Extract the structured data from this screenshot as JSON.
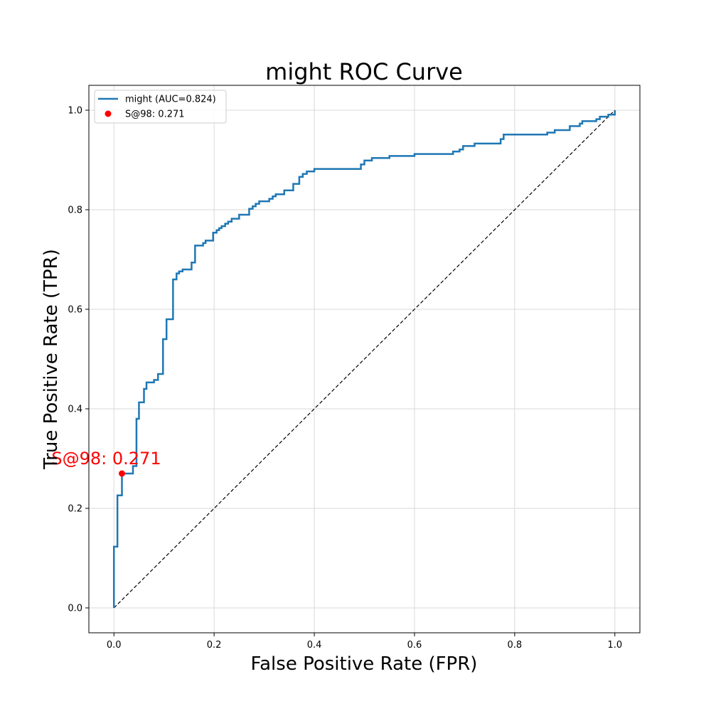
{
  "chart_data": {
    "type": "line",
    "title": "might ROC Curve",
    "xlabel": "False Positive Rate (FPR)",
    "ylabel": "True Positive Rate (TPR)",
    "xlim": [
      -0.05,
      1.05
    ],
    "ylim": [
      -0.05,
      1.05
    ],
    "xticks": [
      0.0,
      0.2,
      0.4,
      0.6,
      0.8,
      1.0
    ],
    "xtick_labels": [
      "0.0",
      "0.2",
      "0.4",
      "0.6",
      "0.8",
      "1.0"
    ],
    "yticks": [
      0.0,
      0.2,
      0.4,
      0.6,
      0.8,
      1.0
    ],
    "ytick_labels": [
      "0.0",
      "0.2",
      "0.4",
      "0.6",
      "0.8",
      "1.0"
    ],
    "grid": true,
    "legend_position": "top-left",
    "series": [
      {
        "name": "might (AUC=0.824)",
        "color": "#1f77b4",
        "points": [
          [
            0.0,
            0.0
          ],
          [
            0.0,
            0.123
          ],
          [
            0.007,
            0.123
          ],
          [
            0.007,
            0.226
          ],
          [
            0.016,
            0.226
          ],
          [
            0.016,
            0.27
          ],
          [
            0.038,
            0.27
          ],
          [
            0.038,
            0.285
          ],
          [
            0.045,
            0.285
          ],
          [
            0.045,
            0.38
          ],
          [
            0.05,
            0.38
          ],
          [
            0.05,
            0.413
          ],
          [
            0.06,
            0.413
          ],
          [
            0.06,
            0.44
          ],
          [
            0.065,
            0.44
          ],
          [
            0.065,
            0.453
          ],
          [
            0.08,
            0.453
          ],
          [
            0.08,
            0.458
          ],
          [
            0.088,
            0.458
          ],
          [
            0.088,
            0.47
          ],
          [
            0.098,
            0.47
          ],
          [
            0.098,
            0.54
          ],
          [
            0.105,
            0.54
          ],
          [
            0.105,
            0.58
          ],
          [
            0.118,
            0.58
          ],
          [
            0.118,
            0.66
          ],
          [
            0.125,
            0.66
          ],
          [
            0.125,
            0.672
          ],
          [
            0.13,
            0.672
          ],
          [
            0.13,
            0.676
          ],
          [
            0.137,
            0.676
          ],
          [
            0.137,
            0.68
          ],
          [
            0.155,
            0.68
          ],
          [
            0.155,
            0.694
          ],
          [
            0.162,
            0.694
          ],
          [
            0.162,
            0.728
          ],
          [
            0.178,
            0.728
          ],
          [
            0.178,
            0.733
          ],
          [
            0.183,
            0.733
          ],
          [
            0.183,
            0.738
          ],
          [
            0.198,
            0.738
          ],
          [
            0.198,
            0.754
          ],
          [
            0.205,
            0.754
          ],
          [
            0.205,
            0.759
          ],
          [
            0.21,
            0.759
          ],
          [
            0.21,
            0.763
          ],
          [
            0.215,
            0.763
          ],
          [
            0.215,
            0.767
          ],
          [
            0.222,
            0.767
          ],
          [
            0.222,
            0.772
          ],
          [
            0.228,
            0.772
          ],
          [
            0.228,
            0.776
          ],
          [
            0.235,
            0.776
          ],
          [
            0.235,
            0.782
          ],
          [
            0.25,
            0.782
          ],
          [
            0.25,
            0.79
          ],
          [
            0.27,
            0.79
          ],
          [
            0.27,
            0.802
          ],
          [
            0.277,
            0.802
          ],
          [
            0.277,
            0.807
          ],
          [
            0.283,
            0.807
          ],
          [
            0.283,
            0.812
          ],
          [
            0.29,
            0.812
          ],
          [
            0.29,
            0.817
          ],
          [
            0.31,
            0.817
          ],
          [
            0.31,
            0.822
          ],
          [
            0.317,
            0.822
          ],
          [
            0.317,
            0.827
          ],
          [
            0.323,
            0.827
          ],
          [
            0.323,
            0.831
          ],
          [
            0.34,
            0.831
          ],
          [
            0.34,
            0.839
          ],
          [
            0.358,
            0.839
          ],
          [
            0.358,
            0.852
          ],
          [
            0.37,
            0.852
          ],
          [
            0.37,
            0.866
          ],
          [
            0.377,
            0.866
          ],
          [
            0.377,
            0.872
          ],
          [
            0.385,
            0.872
          ],
          [
            0.385,
            0.877
          ],
          [
            0.4,
            0.877
          ],
          [
            0.4,
            0.882
          ],
          [
            0.493,
            0.882
          ],
          [
            0.493,
            0.891
          ],
          [
            0.5,
            0.891
          ],
          [
            0.5,
            0.899
          ],
          [
            0.515,
            0.899
          ],
          [
            0.515,
            0.904
          ],
          [
            0.55,
            0.904
          ],
          [
            0.55,
            0.908
          ],
          [
            0.6,
            0.908
          ],
          [
            0.6,
            0.912
          ],
          [
            0.677,
            0.912
          ],
          [
            0.677,
            0.917
          ],
          [
            0.69,
            0.917
          ],
          [
            0.69,
            0.921
          ],
          [
            0.697,
            0.921
          ],
          [
            0.697,
            0.928
          ],
          [
            0.72,
            0.928
          ],
          [
            0.72,
            0.933
          ],
          [
            0.772,
            0.933
          ],
          [
            0.772,
            0.942
          ],
          [
            0.778,
            0.942
          ],
          [
            0.778,
            0.951
          ],
          [
            0.865,
            0.951
          ],
          [
            0.865,
            0.955
          ],
          [
            0.88,
            0.955
          ],
          [
            0.88,
            0.96
          ],
          [
            0.91,
            0.96
          ],
          [
            0.91,
            0.968
          ],
          [
            0.93,
            0.968
          ],
          [
            0.93,
            0.973
          ],
          [
            0.935,
            0.973
          ],
          [
            0.935,
            0.978
          ],
          [
            0.963,
            0.978
          ],
          [
            0.963,
            0.982
          ],
          [
            0.97,
            0.982
          ],
          [
            0.97,
            0.987
          ],
          [
            0.987,
            0.987
          ],
          [
            0.987,
            0.991
          ],
          [
            1.0,
            0.991
          ],
          [
            1.0,
            1.0
          ]
        ]
      }
    ],
    "diagonal": {
      "points": [
        [
          0.0,
          0.0
        ],
        [
          1.0,
          1.0
        ]
      ],
      "color": "#000000",
      "dashed": true
    },
    "marker": {
      "label": "S@98: 0.271",
      "x": 0.016,
      "y": 0.27,
      "color": "#ff0000"
    }
  }
}
